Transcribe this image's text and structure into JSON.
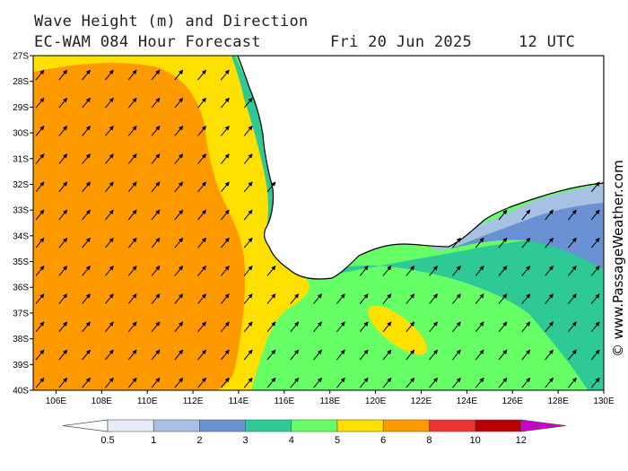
{
  "header": {
    "title": "Wave Height (m) and Direction",
    "model": "EC-WAM 084 Hour Forecast",
    "date": "Fri 20 Jun 2025",
    "time": "12 UTC"
  },
  "map": {
    "lon_range_deg_e": [
      105,
      130
    ],
    "lat_range_deg_s": [
      27,
      40
    ],
    "lat_labels": [
      "27S",
      "28S",
      "29S",
      "30S",
      "31S",
      "32S",
      "33S",
      "34S",
      "35S",
      "36S",
      "37S",
      "38S",
      "39S",
      "40S"
    ],
    "lon_labels": [
      "106E",
      "108E",
      "110E",
      "112E",
      "114E",
      "116E",
      "118E",
      "120E",
      "122E",
      "124E",
      "126E",
      "128E",
      "130E"
    ],
    "land_color": "#ffffff",
    "arrow_direction": "northeast"
  },
  "legend": {
    "labels": [
      "0.5",
      "1",
      "2",
      "3",
      "4",
      "5",
      "6",
      "8",
      "10",
      "12"
    ],
    "colors": [
      "#e6ecf8",
      "#a7c0e4",
      "#6991d4",
      "#2ec996",
      "#66ff66",
      "#ffe000",
      "#ff9900",
      "#ee3333",
      "#b80000",
      "#cc00cc"
    ]
  },
  "credit": "© www.PassageWeather.com"
}
